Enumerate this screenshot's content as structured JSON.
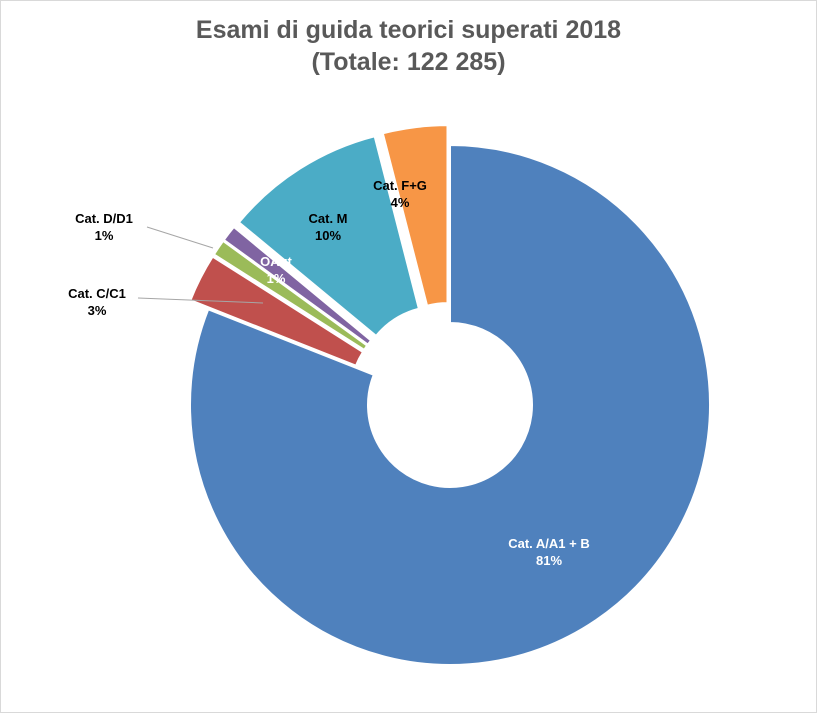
{
  "chart_data": {
    "type": "pie",
    "title": "Esami di guida teorici superati 2018",
    "subtitle": "(Totale: 122 285)",
    "donut": true,
    "exploded": true,
    "slices": [
      {
        "name": "Cat. A/A1 + B",
        "value": 81,
        "pct_label": "81%",
        "color": "#4f81bd",
        "label_pos": "inside"
      },
      {
        "name": "Cat. C/C1",
        "value": 3,
        "pct_label": "3%",
        "color": "#c0504d",
        "label_pos": "outside-left"
      },
      {
        "name": "Cat. D/D1",
        "value": 1,
        "pct_label": "1%",
        "color": "#9bbb59",
        "label_pos": "outside-left"
      },
      {
        "name": "OAut",
        "value": 1,
        "pct_label": "1%",
        "color": "#8064a2",
        "label_pos": "inside"
      },
      {
        "name": "Cat. M",
        "value": 10,
        "pct_label": "10%",
        "color": "#4bacc6",
        "label_pos": "inside"
      },
      {
        "name": "Cat. F+G",
        "value": 4,
        "pct_label": "4%",
        "color": "#f79646",
        "label_pos": "inside"
      }
    ]
  }
}
